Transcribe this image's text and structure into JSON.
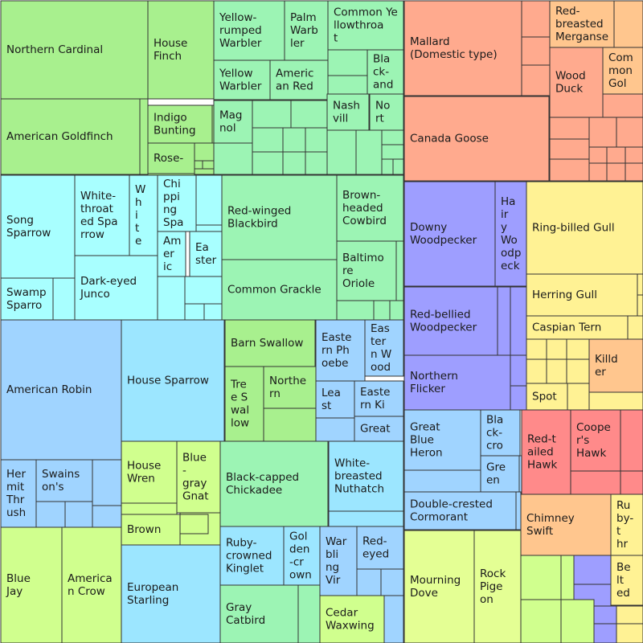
{
  "chart_data": {
    "type": "treemap",
    "colors": {
      "green": "#a8f08e",
      "green_light": "#c8f79a",
      "mint": "#9cf4b4",
      "cyan": "#a8ffff",
      "sky": "#9ce6ff",
      "light_blue": "#a0d4ff",
      "salmon": "#ffaa8e",
      "orange_light": "#ffc68e",
      "yellow": "#fff294",
      "purple": "#9e9eff",
      "purple_dark": "#8888f0",
      "red": "#ff8a8a",
      "lime": "#e4ff94",
      "lime_light": "#d0ff8e"
    },
    "labeled_cells": [
      {
        "label": "Northern Cardinal",
        "c": "green"
      },
      {
        "label": "American Goldfinch",
        "c": "green"
      },
      {
        "label": "House\nFinch",
        "c": "green"
      },
      {
        "label": "Indigo\nBunting",
        "c": "green"
      },
      {
        "label": "Rose-",
        "c": "green"
      },
      {
        "label": "Yellow-\nrumped\nWarbler",
        "c": "mint"
      },
      {
        "label": "Palm\nWarb\nler",
        "c": "mint"
      },
      {
        "label": "Yellow\nWarbler",
        "c": "mint"
      },
      {
        "label": "Americ\nan Red",
        "c": "mint"
      },
      {
        "label": "Mag\nnol",
        "c": "mint"
      },
      {
        "label": "Common Ye\nllowthroa\nt",
        "c": "mint"
      },
      {
        "label": "Bla\nck-\nand",
        "c": "mint"
      },
      {
        "label": "Nash\nvill",
        "c": "mint"
      },
      {
        "label": "No\nrt",
        "c": "mint"
      },
      {
        "label": "Song\nSparrow",
        "c": "cyan"
      },
      {
        "label": "Swamp\nSparro",
        "c": "cyan"
      },
      {
        "label": "White-\nthroat\ned Spa\nrrow",
        "c": "cyan"
      },
      {
        "label": "W\nh\ni\nt\ne",
        "c": "cyan"
      },
      {
        "label": "Chi\nppi\nng\nSpa",
        "c": "cyan"
      },
      {
        "label": "Dark-eyed\nJunco",
        "c": "cyan"
      },
      {
        "label": "Am\ner\nic",
        "c": "cyan"
      },
      {
        "label": "Ea\nster",
        "c": "cyan"
      },
      {
        "label": "Red-winged\nBlackbird",
        "c": "mint"
      },
      {
        "label": "Brown-\nheaded\nCowbird",
        "c": "mint"
      },
      {
        "label": "Common Grackle",
        "c": "mint"
      },
      {
        "label": "Baltimo\nre\nOriole",
        "c": "mint"
      },
      {
        "label": "Mallard\n(Domestic type)",
        "c": "salmon"
      },
      {
        "label": "Canada Goose",
        "c": "salmon"
      },
      {
        "label": "Red-\nbreasted\nMerganse",
        "c": "orange_light"
      },
      {
        "label": "Wood\nDuck",
        "c": "salmon"
      },
      {
        "label": "Com\nmon\nGol",
        "c": "orange_light"
      },
      {
        "label": "Downy\nWoodpecker",
        "c": "purple"
      },
      {
        "label": "Ha\nir\ny\nWo\nodp\neck",
        "c": "purple"
      },
      {
        "label": "Red-bellied\nWoodpecker",
        "c": "purple"
      },
      {
        "label": "Northern\nFlicker",
        "c": "purple"
      },
      {
        "label": "Ring-billed Gull",
        "c": "yellow"
      },
      {
        "label": "Herring Gull",
        "c": "yellow"
      },
      {
        "label": "Caspian Tern",
        "c": "yellow"
      },
      {
        "label": "Killd\ner",
        "c": "orange_light"
      },
      {
        "label": "Spot",
        "c": "yellow"
      },
      {
        "label": "American Robin",
        "c": "light_blue"
      },
      {
        "label": "Her\nmit\nThr\nush",
        "c": "light_blue"
      },
      {
        "label": "Swains\non's",
        "c": "light_blue"
      },
      {
        "label": "House Sparrow",
        "c": "sky"
      },
      {
        "label": "Barn Swallow",
        "c": "green"
      },
      {
        "label": "Tre\ne S\nwal\nlow",
        "c": "green"
      },
      {
        "label": "Northe\nrn",
        "c": "green"
      },
      {
        "label": "Easte\nrn Ph\noebe",
        "c": "light_blue"
      },
      {
        "label": "Eas\nter\nn W\nood",
        "c": "light_blue"
      },
      {
        "label": "Lea\nst",
        "c": "light_blue"
      },
      {
        "label": "Easte\nrn Ki",
        "c": "light_blue"
      },
      {
        "label": "Great",
        "c": "light_blue"
      },
      {
        "label": "House\nWren",
        "c": "lime_light"
      },
      {
        "label": "Blue\n-\ngray\nGnat",
        "c": "lime_light"
      },
      {
        "label": "Brown",
        "c": "lime_light"
      },
      {
        "label": "Black-capped\nChickadee",
        "c": "mint"
      },
      {
        "label": "White-\nbreasted\nNuthatch",
        "c": "sky"
      },
      {
        "label": "Ruby-\ncrowned\nKinglet",
        "c": "sky"
      },
      {
        "label": "Gol\nden\n-cr\nown",
        "c": "sky"
      },
      {
        "label": "War\nbli\nng\nVir",
        "c": "light_blue"
      },
      {
        "label": "Red-\neyed",
        "c": "light_blue"
      },
      {
        "label": "European\nStarling",
        "c": "sky"
      },
      {
        "label": "Gray\nCatbird",
        "c": "mint"
      },
      {
        "label": "Cedar\nWaxwing",
        "c": "lime_light"
      },
      {
        "label": "Blue\nJay",
        "c": "lime_light"
      },
      {
        "label": "America\nn Crow",
        "c": "lime_light"
      },
      {
        "label": "Great\nBlue\nHeron",
        "c": "light_blue"
      },
      {
        "label": "Bla\nck-\ncro",
        "c": "light_blue"
      },
      {
        "label": "Gre\nen",
        "c": "light_blue"
      },
      {
        "label": "Double-crested\nCormorant",
        "c": "light_blue"
      },
      {
        "label": "Red-t\nailed\nHawk",
        "c": "red"
      },
      {
        "label": "Coope\nr's\nHawk",
        "c": "red"
      },
      {
        "label": "Mourning\nDove",
        "c": "lime"
      },
      {
        "label": "Rock\nPige\non",
        "c": "lime"
      },
      {
        "label": "Chimney\nSwift",
        "c": "orange_light"
      },
      {
        "label": "Ru\nby-\nt\nhr",
        "c": "yellow"
      },
      {
        "label": "Be\nlt\ned",
        "c": "yellow"
      }
    ]
  }
}
